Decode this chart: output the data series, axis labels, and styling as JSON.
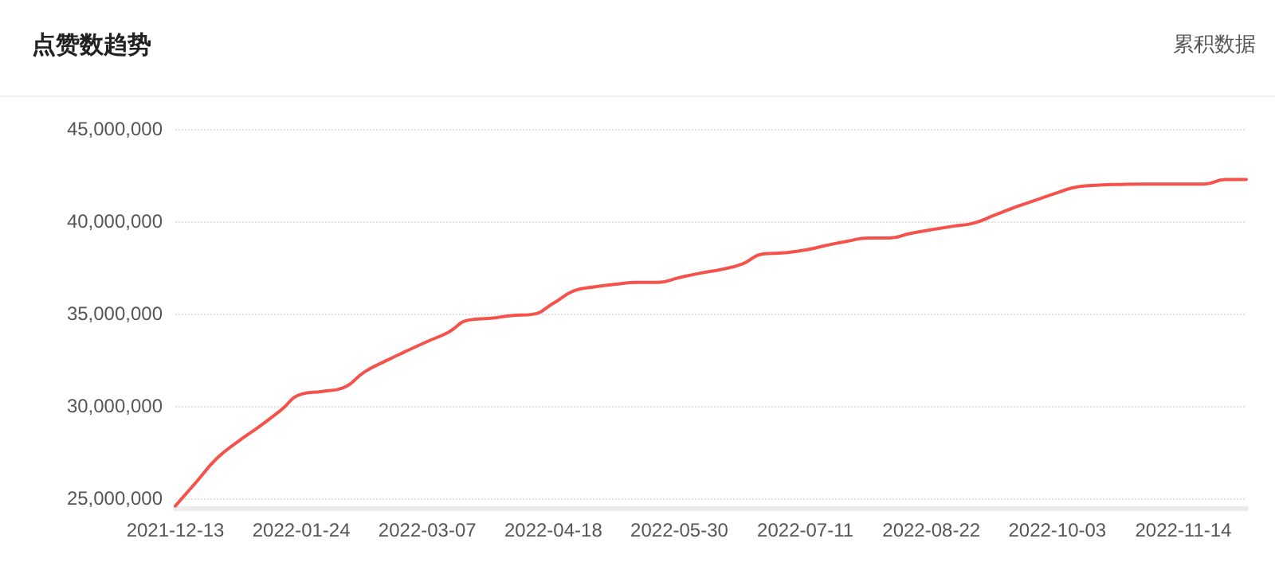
{
  "chart_data": {
    "type": "line",
    "title": "点赞数趋势",
    "annotations": [
      "累积数据"
    ],
    "x": [
      "2021-12-13",
      "2021-12-20",
      "2021-12-27",
      "2022-01-03",
      "2022-01-10",
      "2022-01-17",
      "2022-01-24",
      "2022-01-31",
      "2022-02-07",
      "2022-02-14",
      "2022-02-21",
      "2022-02-28",
      "2022-03-07",
      "2022-03-14",
      "2022-03-21",
      "2022-03-28",
      "2022-04-04",
      "2022-04-11",
      "2022-04-18",
      "2022-04-25",
      "2022-05-02",
      "2022-05-09",
      "2022-05-16",
      "2022-05-23",
      "2022-05-30",
      "2022-06-06",
      "2022-06-13",
      "2022-06-20",
      "2022-06-27",
      "2022-07-04",
      "2022-07-11",
      "2022-07-18",
      "2022-07-25",
      "2022-08-01",
      "2022-08-08",
      "2022-08-15",
      "2022-08-22",
      "2022-08-29",
      "2022-09-05",
      "2022-09-12",
      "2022-09-19",
      "2022-09-26",
      "2022-10-03",
      "2022-10-10",
      "2022-10-17",
      "2022-10-24",
      "2022-10-31",
      "2022-11-07",
      "2022-11-14",
      "2022-11-21",
      "2022-11-28",
      "2022-12-05"
    ],
    "series": [
      {
        "color": "#f4524a",
        "values": [
          24600000,
          25900000,
          27200000,
          28100000,
          28900000,
          29760000,
          30650000,
          30800000,
          31000000,
          31850000,
          32440000,
          32980000,
          33500000,
          34000000,
          34670000,
          34760000,
          34900000,
          34970000,
          35570000,
          36250000,
          36460000,
          36600000,
          36700000,
          36700000,
          36960000,
          37200000,
          37400000,
          37700000,
          38240000,
          38300000,
          38450000,
          38700000,
          38930000,
          39100000,
          39100000,
          39350000,
          39550000,
          39730000,
          39900000,
          40330000,
          40770000,
          41160000,
          41550000,
          41880000,
          41960000,
          42000000,
          42020000,
          42020000,
          42020000,
          42020000,
          42260000,
          42260000
        ]
      }
    ],
    "xlim": [
      "2021-12-13",
      "2022-12-05"
    ],
    "xticks": [
      "2021-12-13",
      "2022-01-24",
      "2022-03-07",
      "2022-04-18",
      "2022-05-30",
      "2022-07-11",
      "2022-08-22",
      "2022-10-03",
      "2022-11-14"
    ],
    "ylim": [
      24500000,
      45000000
    ],
    "yticks": [
      {
        "value": 25000000,
        "label": "25,000,000"
      },
      {
        "value": 30000000,
        "label": "30,000,000"
      },
      {
        "value": 35000000,
        "label": "35,000,000"
      },
      {
        "value": 40000000,
        "label": "40,000,000"
      },
      {
        "value": 45000000,
        "label": "45,000,000"
      }
    ],
    "grid": "y",
    "marker": "none",
    "line_style": "solid"
  }
}
